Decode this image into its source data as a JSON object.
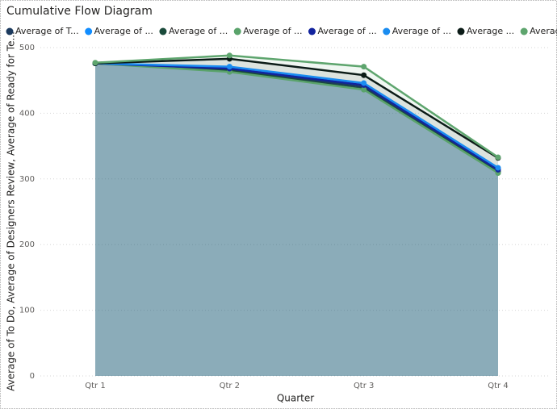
{
  "chart_data": {
    "type": "area",
    "title": "Cumulative Flow Diagram",
    "x_label": "Quarter",
    "y_label": "Average of To Do, Average of Designers Review, Average of Ready for Te...",
    "categories": [
      "Qtr 1",
      "Qtr 2",
      "Qtr 3",
      "Qtr 4"
    ],
    "ylim": [
      0,
      500
    ],
    "yticks": [
      0,
      100,
      200,
      300,
      400,
      500
    ],
    "grid": true,
    "series": [
      {
        "name": "Average of T...",
        "color": "#1c3a5e",
        "values": [
          476,
          467,
          440,
          312
        ]
      },
      {
        "name": "Average of ...",
        "color": "#118dff",
        "values": [
          476,
          470,
          445,
          316
        ]
      },
      {
        "name": "Average of ...",
        "color": "#1a4a3a",
        "values": [
          476,
          465,
          437,
          310
        ]
      },
      {
        "name": "Average of ...",
        "color": "#5aa36b",
        "values": [
          476,
          463,
          436,
          309
        ]
      },
      {
        "name": "Average of ...",
        "color": "#12239e",
        "values": [
          476,
          468,
          443,
          314
        ]
      },
      {
        "name": "Average of ...",
        "color": "#1a8cf0",
        "values": [
          476,
          471,
          446,
          317
        ]
      },
      {
        "name": "Average ...",
        "color": "#0b1b17",
        "values": [
          476,
          483,
          458,
          332
        ]
      },
      {
        "name": "Average ...",
        "color": "#5ea56e",
        "values": [
          477,
          488,
          471,
          333
        ]
      }
    ]
  }
}
